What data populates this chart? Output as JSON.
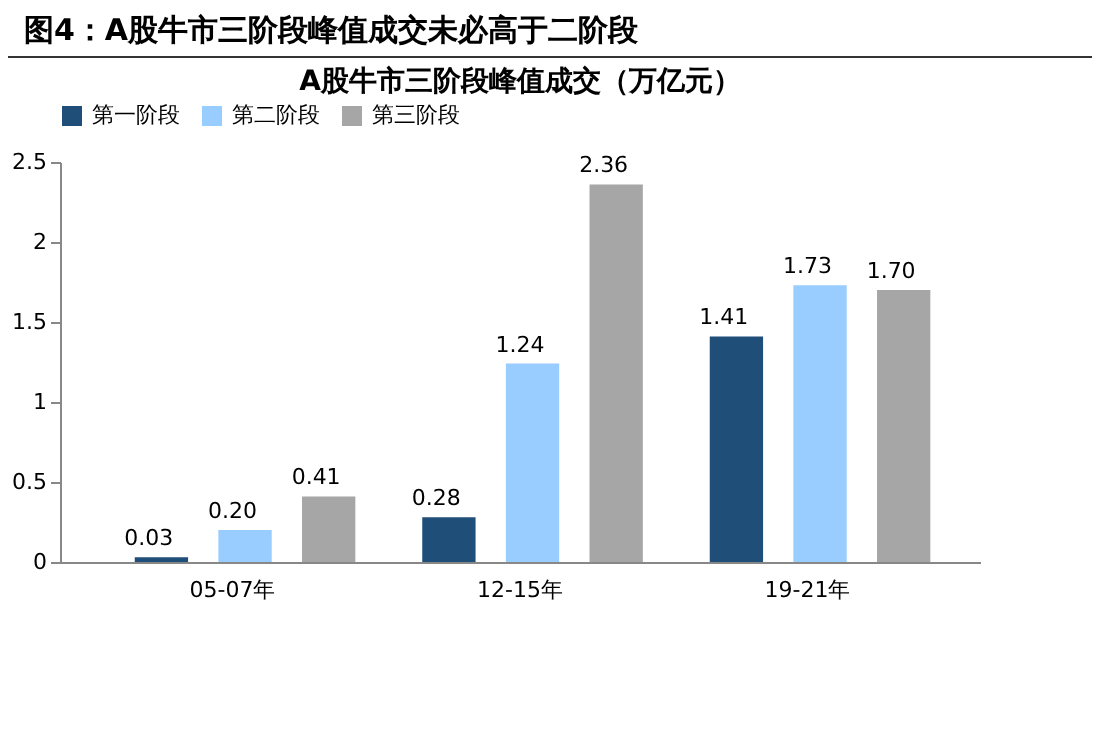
{
  "chart_data": {
    "type": "bar",
    "title": "图4：A股牛市三阶段峰值成交未必高于二阶段",
    "subtitle": "A股牛市三阶段峰值成交（万亿元）",
    "categories": [
      "05-07年",
      "12-15年",
      "19-21年"
    ],
    "series": [
      {
        "name": "第一阶段",
        "color": "#1f4e79",
        "values": [
          0.03,
          0.28,
          1.41
        ],
        "value_labels": [
          "0.03",
          "0.28",
          "1.41"
        ]
      },
      {
        "name": "第二阶段",
        "color": "#99ccff",
        "values": [
          0.2,
          1.24,
          1.73
        ],
        "value_labels": [
          "0.20",
          "1.24",
          "1.73"
        ]
      },
      {
        "name": "第三阶段",
        "color": "#a6a6a6",
        "values": [
          0.41,
          2.36,
          1.7
        ],
        "value_labels": [
          "0.41",
          "2.36",
          "1.70"
        ]
      }
    ],
    "ylim": [
      0,
      2.5
    ],
    "yticks": [
      0,
      0.5,
      1,
      1.5,
      2,
      2.5
    ],
    "grid": false,
    "legend": "top"
  }
}
